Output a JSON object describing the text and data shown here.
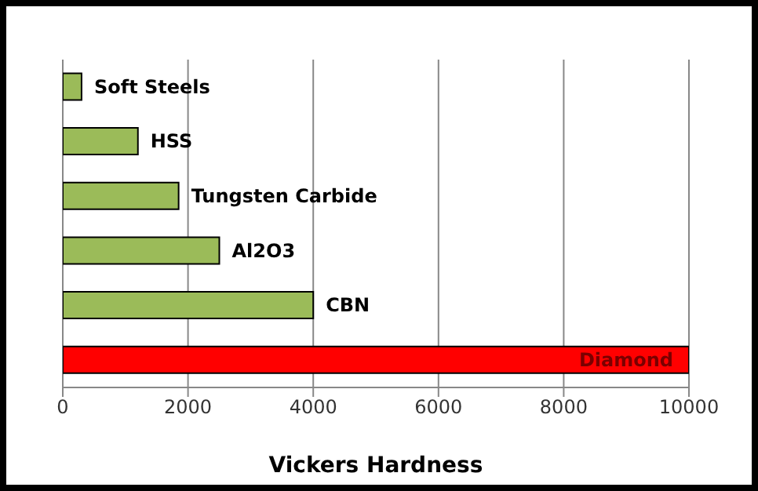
{
  "chart_data": {
    "type": "bar",
    "orientation": "horizontal",
    "xlabel": "Vickers Hardness",
    "categories": [
      "Soft Steels",
      "HSS",
      "Tungsten Carbide",
      "Al2O3",
      "CBN",
      "Diamond"
    ],
    "values": [
      300,
      1200,
      1850,
      2500,
      4000,
      10000
    ],
    "colors": [
      "#9bbb59",
      "#9bbb59",
      "#9bbb59",
      "#9bbb59",
      "#9bbb59",
      "#ff0000"
    ],
    "xlim": [
      0,
      10000
    ],
    "xticks": [
      0,
      2000,
      4000,
      6000,
      8000,
      10000
    ],
    "grid": "x",
    "legend": false
  }
}
